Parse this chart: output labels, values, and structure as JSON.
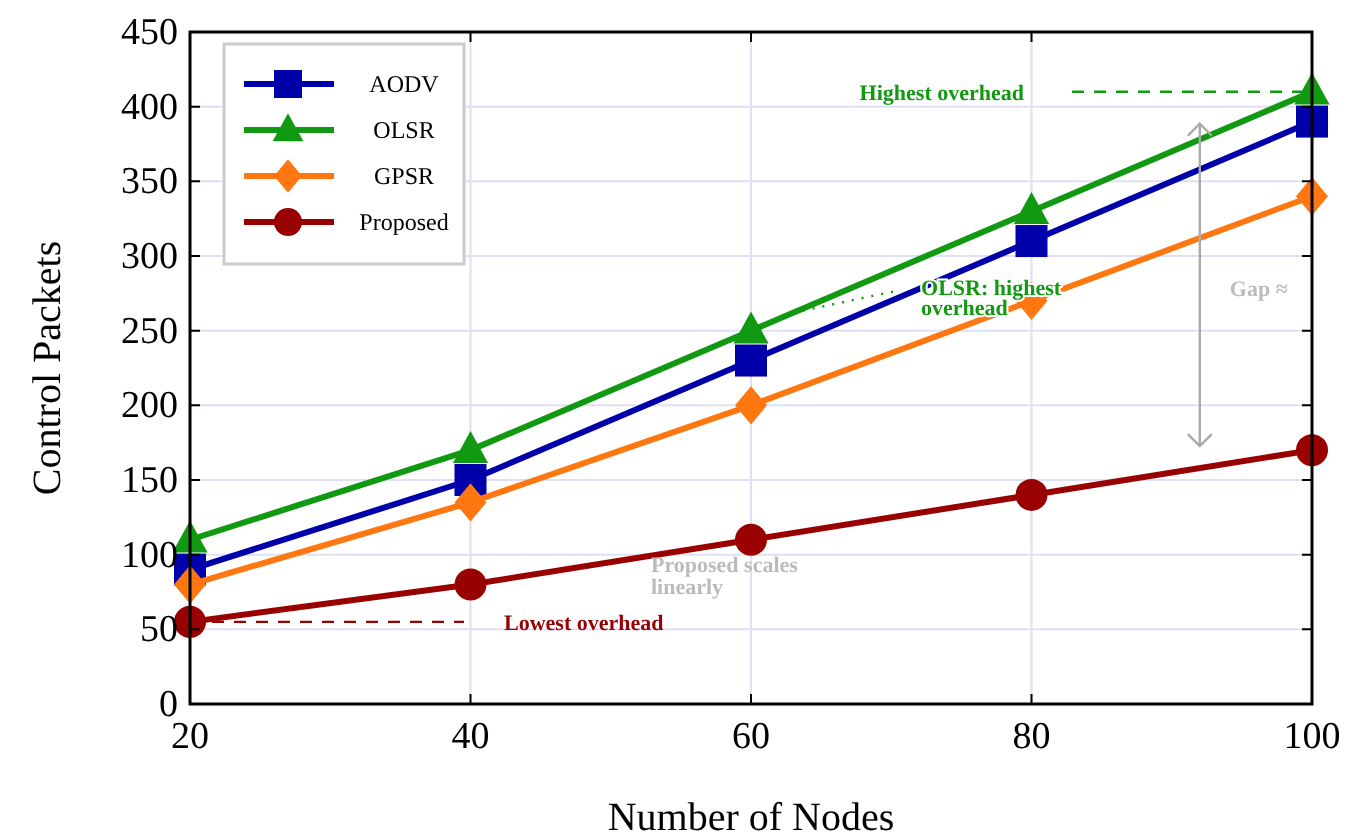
{
  "chart_data": {
    "type": "line",
    "xlabel": "Number of Nodes",
    "ylabel": "Control Packets",
    "x": [
      20,
      40,
      60,
      80,
      100
    ],
    "series": [
      {
        "name": "AODV",
        "color": "#0000aa",
        "marker": "square",
        "values": [
          90,
          150,
          230,
          310,
          390
        ]
      },
      {
        "name": "OLSR",
        "color": "#119911",
        "marker": "triangle",
        "values": [
          110,
          170,
          250,
          330,
          410
        ]
      },
      {
        "name": "GPSR",
        "color": "#ff7711",
        "marker": "diamond",
        "values": [
          80,
          135,
          200,
          270,
          340
        ]
      },
      {
        "name": "Proposed",
        "color": "#990000",
        "marker": "circle",
        "values": [
          55,
          80,
          110,
          140,
          170
        ]
      }
    ],
    "xlim": [
      20,
      100
    ],
    "xticks": [
      20,
      40,
      60,
      80,
      100
    ],
    "ylim": [
      0,
      450
    ],
    "yticks": [
      0,
      50,
      100,
      150,
      200,
      250,
      300,
      350,
      400,
      450
    ],
    "grid": true,
    "legend": "top left",
    "annotations": [
      "Highest overhead",
      "Lowest overhead",
      {
        "text": "OLSR: highest overhead",
        "x": 63,
        "y": 262
      },
      "Proposed scales linearly",
      "Gap ≈"
    ]
  }
}
